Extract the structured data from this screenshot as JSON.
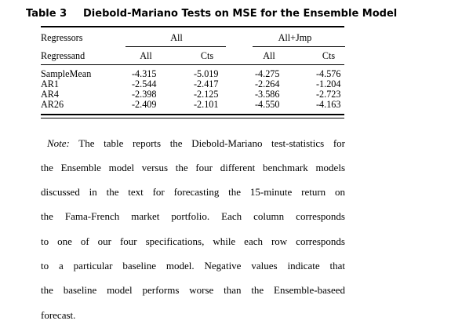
{
  "caption": {
    "label": "Table 3",
    "title": "Diebold-Mariano Tests on MSE for the Ensemble Model"
  },
  "table": {
    "regressors_label": "Regressors",
    "regressand_label": "Regressand",
    "group_headers": [
      "All",
      "All+Jmp"
    ],
    "sub_headers": [
      "All",
      "Cts",
      "All",
      "Cts"
    ],
    "rows": [
      {
        "name": "SampleMean",
        "values": [
          "-4.315",
          "-5.019",
          "-4.275",
          "-4.576"
        ]
      },
      {
        "name": "AR1",
        "values": [
          "-2.544",
          "-2.417",
          "-2.264",
          "-1.204"
        ]
      },
      {
        "name": "AR4",
        "values": [
          "-2.398",
          "-2.125",
          "-3.586",
          "-2.723"
        ]
      },
      {
        "name": "AR26",
        "values": [
          "-2.409",
          "-2.101",
          "-4.550",
          "-4.163"
        ]
      }
    ]
  },
  "note": {
    "label": "Note:",
    "lines": [
      " The table reports the Diebold-Mariano test-statistics for",
      "the Ensemble model versus the four different benchmark models",
      "discussed in the text for forecasting the 15-minute return on",
      "the Fama-French market portfolio. Each column corresponds",
      "to one of our four specifications, while each row corresponds",
      "to a particular baseline model. Negative values indicate that",
      "the baseline model performs worse than the Ensemble-baseed",
      "forecast."
    ]
  }
}
